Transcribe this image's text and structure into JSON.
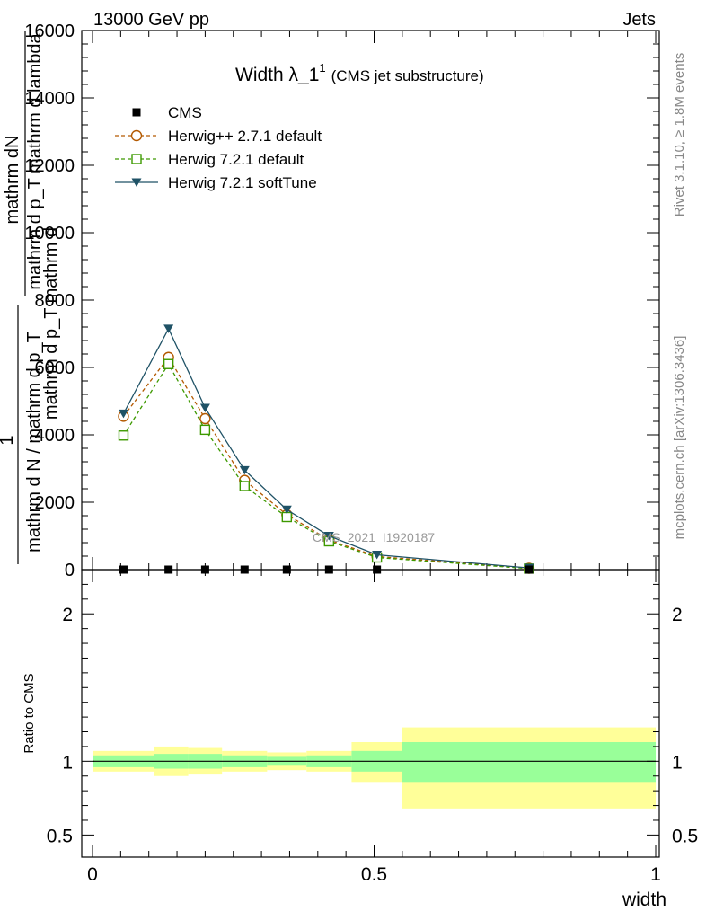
{
  "header": {
    "left": "13000 GeV pp",
    "right": "Jets"
  },
  "title": {
    "main": "Width λ_1",
    "sup": "1",
    "sub": "(CMS jet substructure)"
  },
  "side_labels": {
    "rivet": "Rivet 3.1.10, ≥ 1.8M events",
    "mcplots": "mcplots.cern.ch [arXiv:1306.3436]"
  },
  "watermark": "CMS_2021_I1920187",
  "y_axis": {
    "line1": "mathrm dN",
    "line2": "mathrm d p_T mathrm d lambda",
    "line3": "mathrm d p_T mathrm d",
    "one": "1",
    "denominator": "mathrm d N / mathrm d p_T"
  },
  "ratio_ylabel": "Ratio to CMS",
  "xlabel": "width",
  "colors": {
    "cms": "#000000",
    "herwig271": "#b35900",
    "herwig721": "#3d9900",
    "softtune": "#1f5266",
    "band_inner": "#99ff99",
    "band_outer": "#ffff99"
  },
  "chart_data": [
    {
      "type": "line",
      "title": "Width λ_1^1 (CMS jet substructure)",
      "xlim": [
        -0.02,
        1.02
      ],
      "ylim": [
        0,
        16000
      ],
      "yticks": [
        0,
        2000,
        4000,
        6000,
        8000,
        10000,
        12000,
        14000,
        16000
      ],
      "ytick_labels": [
        "0",
        "2000",
        "4000",
        "6000",
        "8000",
        "10000",
        "12000",
        "14000",
        "16000"
      ],
      "legend": "top-left",
      "series": [
        {
          "name": "CMS",
          "marker": "square-filled",
          "x": [
            0.055,
            0.135,
            0.2,
            0.27,
            0.345,
            0.42,
            0.505,
            0.775
          ],
          "values": [
            0,
            0,
            0,
            0,
            0,
            0,
            0,
            0
          ]
        },
        {
          "name": "Herwig++ 2.7.1 default",
          "marker": "circle-open",
          "x": [
            0.055,
            0.135,
            0.2,
            0.27,
            0.345,
            0.42,
            0.505,
            0.775
          ],
          "values": [
            4550,
            6300,
            4480,
            2650,
            1630,
            880,
            390,
            40
          ]
        },
        {
          "name": "Herwig 7.2.1 default",
          "marker": "square-open",
          "x": [
            0.055,
            0.135,
            0.2,
            0.27,
            0.345,
            0.42,
            0.505,
            0.775
          ],
          "values": [
            3980,
            6100,
            4150,
            2480,
            1560,
            840,
            360,
            30
          ]
        },
        {
          "name": "Herwig 7.2.1 softTune",
          "marker": "triangle-down-filled",
          "x": [
            0.055,
            0.135,
            0.2,
            0.27,
            0.345,
            0.42,
            0.505,
            0.775
          ],
          "values": [
            4630,
            7150,
            4800,
            2950,
            1780,
            1000,
            440,
            50
          ]
        }
      ]
    },
    {
      "type": "area",
      "ylabel": "Ratio to CMS",
      "xlabel": "width",
      "xlim": [
        -0.02,
        1.02
      ],
      "ylim": [
        0.35,
        2.3
      ],
      "yticks": [
        0.5,
        1,
        2
      ],
      "ytick_labels": [
        "0.5",
        "1",
        "2"
      ],
      "xticks": [
        0,
        0.5,
        1
      ],
      "xtick_labels": [
        "0",
        "0.5",
        "1"
      ],
      "bins": [
        {
          "lo": 0.0,
          "hi": 0.11,
          "inner": [
            0.96,
            1.04
          ],
          "outer": [
            0.93,
            1.07
          ]
        },
        {
          "lo": 0.11,
          "hi": 0.17,
          "inner": [
            0.95,
            1.05
          ],
          "outer": [
            0.9,
            1.1
          ]
        },
        {
          "lo": 0.17,
          "hi": 0.23,
          "inner": [
            0.95,
            1.05
          ],
          "outer": [
            0.91,
            1.09
          ]
        },
        {
          "lo": 0.23,
          "hi": 0.31,
          "inner": [
            0.96,
            1.04
          ],
          "outer": [
            0.93,
            1.07
          ]
        },
        {
          "lo": 0.31,
          "hi": 0.38,
          "inner": [
            0.97,
            1.03
          ],
          "outer": [
            0.94,
            1.06
          ]
        },
        {
          "lo": 0.38,
          "hi": 0.46,
          "inner": [
            0.96,
            1.04
          ],
          "outer": [
            0.93,
            1.07
          ]
        },
        {
          "lo": 0.46,
          "hi": 0.55,
          "inner": [
            0.93,
            1.07
          ],
          "outer": [
            0.86,
            1.13
          ]
        },
        {
          "lo": 0.55,
          "hi": 1.0,
          "inner": [
            0.86,
            1.13
          ],
          "outer": [
            0.68,
            1.23
          ]
        }
      ]
    }
  ]
}
